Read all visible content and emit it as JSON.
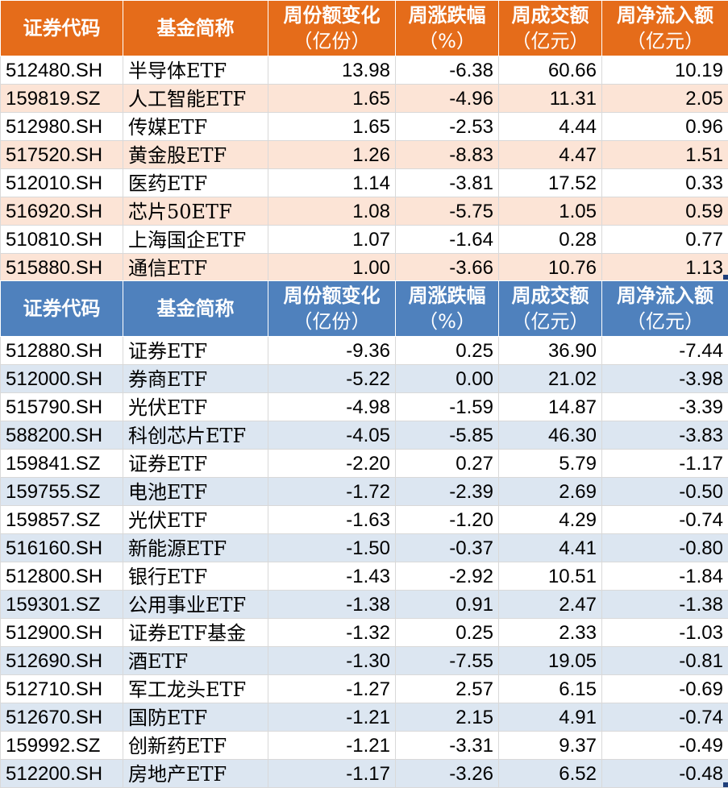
{
  "colors": {
    "inflow_header": "#e56c1a",
    "inflow_stripe": "#fce4d6",
    "outflow_header": "#4f81bd",
    "outflow_stripe": "#dce6f1"
  },
  "header": {
    "code": "证券代码",
    "name": "基金简称",
    "share_change": "周份额变化",
    "share_change_unit": "（亿份）",
    "pct_change": "周涨跌幅",
    "pct_change_unit": "（%）",
    "turnover": "周成交额",
    "turnover_unit": "（亿元）",
    "net_inflow": "周净流入额",
    "net_inflow_unit": "（亿元）"
  },
  "inflow_rows": [
    {
      "code": "512480.SH",
      "name": "半导体ETF",
      "share_change": "13.98",
      "pct_change": "-6.38",
      "turnover": "60.66",
      "net_inflow": "10.19"
    },
    {
      "code": "159819.SZ",
      "name": "人工智能ETF",
      "share_change": "1.65",
      "pct_change": "-4.96",
      "turnover": "11.31",
      "net_inflow": "2.05"
    },
    {
      "code": "512980.SH",
      "name": "传媒ETF",
      "share_change": "1.65",
      "pct_change": "-2.53",
      "turnover": "4.44",
      "net_inflow": "0.96"
    },
    {
      "code": "517520.SH",
      "name": "黄金股ETF",
      "share_change": "1.26",
      "pct_change": "-8.83",
      "turnover": "4.47",
      "net_inflow": "1.51"
    },
    {
      "code": "512010.SH",
      "name": "医药ETF",
      "share_change": "1.14",
      "pct_change": "-3.81",
      "turnover": "17.52",
      "net_inflow": "0.33"
    },
    {
      "code": "516920.SH",
      "name": "芯片50ETF",
      "share_change": "1.08",
      "pct_change": "-5.75",
      "turnover": "1.05",
      "net_inflow": "0.59"
    },
    {
      "code": "510810.SH",
      "name": "上海国企ETF",
      "share_change": "1.07",
      "pct_change": "-1.64",
      "turnover": "0.28",
      "net_inflow": "0.77"
    },
    {
      "code": "515880.SH",
      "name": "通信ETF",
      "share_change": "1.00",
      "pct_change": "-3.66",
      "turnover": "10.76",
      "net_inflow": "1.13"
    }
  ],
  "outflow_rows": [
    {
      "code": "512880.SH",
      "name": "证券ETF",
      "share_change": "-9.36",
      "pct_change": "0.25",
      "turnover": "36.90",
      "net_inflow": "-7.44"
    },
    {
      "code": "512000.SH",
      "name": "券商ETF",
      "share_change": "-5.22",
      "pct_change": "0.00",
      "turnover": "21.02",
      "net_inflow": "-3.98"
    },
    {
      "code": "515790.SH",
      "name": "光伏ETF",
      "share_change": "-4.98",
      "pct_change": "-1.59",
      "turnover": "14.87",
      "net_inflow": "-3.39"
    },
    {
      "code": "588200.SH",
      "name": "科创芯片ETF",
      "share_change": "-4.05",
      "pct_change": "-5.85",
      "turnover": "46.30",
      "net_inflow": "-3.83"
    },
    {
      "code": "159841.SZ",
      "name": "证券ETF",
      "share_change": "-2.20",
      "pct_change": "0.27",
      "turnover": "5.79",
      "net_inflow": "-1.17"
    },
    {
      "code": "159755.SZ",
      "name": "电池ETF",
      "share_change": "-1.72",
      "pct_change": "-2.39",
      "turnover": "2.69",
      "net_inflow": "-0.50"
    },
    {
      "code": "159857.SZ",
      "name": "光伏ETF",
      "share_change": "-1.63",
      "pct_change": "-1.20",
      "turnover": "4.29",
      "net_inflow": "-0.74"
    },
    {
      "code": "516160.SH",
      "name": "新能源ETF",
      "share_change": "-1.50",
      "pct_change": "-0.37",
      "turnover": "4.41",
      "net_inflow": "-0.80"
    },
    {
      "code": "512800.SH",
      "name": "银行ETF",
      "share_change": "-1.43",
      "pct_change": "-2.92",
      "turnover": "10.51",
      "net_inflow": "-1.84"
    },
    {
      "code": "159301.SZ",
      "name": "公用事业ETF",
      "share_change": "-1.38",
      "pct_change": "0.91",
      "turnover": "2.47",
      "net_inflow": "-1.38"
    },
    {
      "code": "512900.SH",
      "name": "证券ETF基金",
      "share_change": "-1.32",
      "pct_change": "0.25",
      "turnover": "2.33",
      "net_inflow": "-1.03"
    },
    {
      "code": "512690.SH",
      "name": "酒ETF",
      "share_change": "-1.30",
      "pct_change": "-7.55",
      "turnover": "19.05",
      "net_inflow": "-0.81"
    },
    {
      "code": "512710.SH",
      "name": "军工龙头ETF",
      "share_change": "-1.27",
      "pct_change": "2.57",
      "turnover": "6.15",
      "net_inflow": "-0.69"
    },
    {
      "code": "512670.SH",
      "name": "国防ETF",
      "share_change": "-1.21",
      "pct_change": "2.15",
      "turnover": "4.91",
      "net_inflow": "-0.74"
    },
    {
      "code": "159992.SZ",
      "name": "创新药ETF",
      "share_change": "-1.21",
      "pct_change": "-3.31",
      "turnover": "9.37",
      "net_inflow": "-0.49"
    },
    {
      "code": "512200.SH",
      "name": "房地产ETF",
      "share_change": "-1.17",
      "pct_change": "-3.26",
      "turnover": "6.52",
      "net_inflow": "-0.48"
    }
  ]
}
